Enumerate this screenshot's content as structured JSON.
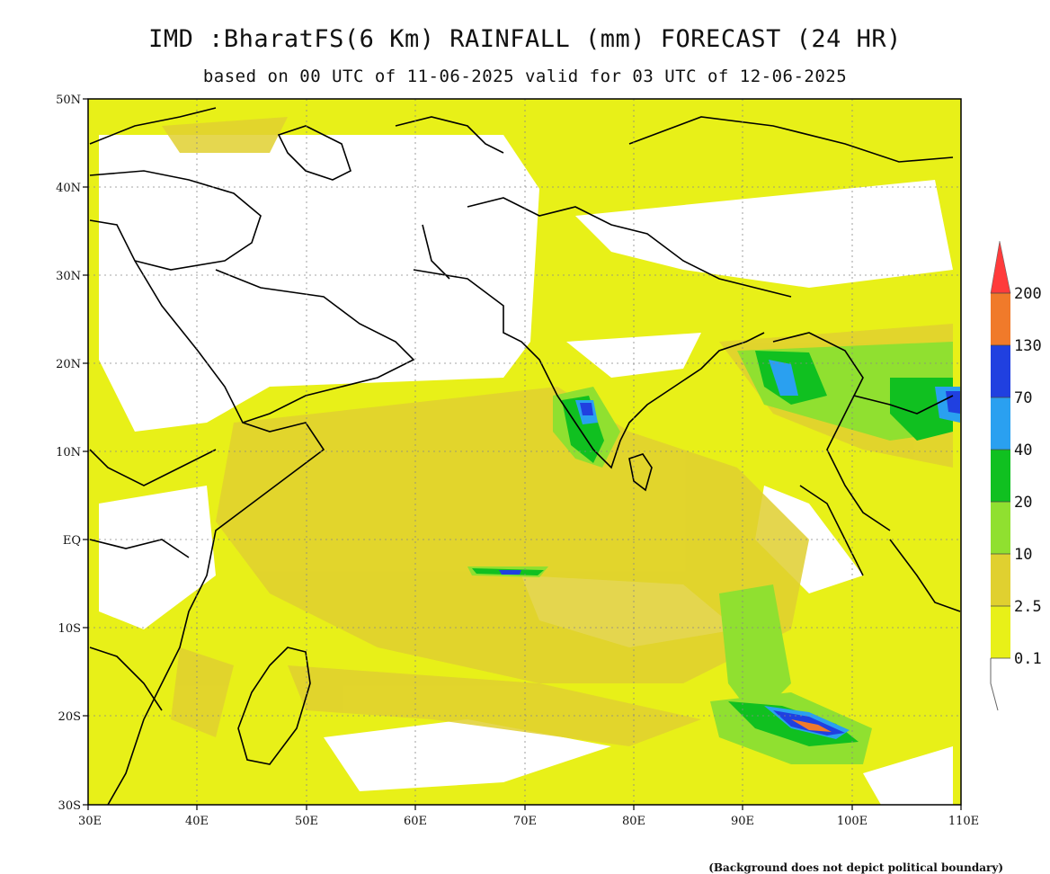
{
  "title": "IMD :BharatFS(6 Km) RAINFALL (mm) FORECAST (24 HR)",
  "subtitle": "based on 00 UTC of 11-06-2025 valid for 03 UTC of 12-06-2025",
  "footnote": "(Background does not depict political boundary)",
  "map": {
    "lon_range": [
      30,
      110
    ],
    "lat_range": [
      -30,
      50
    ],
    "lon_ticks": [
      "30E",
      "40E",
      "50E",
      "60E",
      "70E",
      "80E",
      "90E",
      "100E",
      "110E"
    ],
    "lat_ticks": [
      "50N",
      "40N",
      "30N",
      "20N",
      "10N",
      "EQ",
      "10S",
      "20S",
      "30S"
    ],
    "gridlines": true
  },
  "legend": {
    "labels": [
      "200",
      "130",
      "70",
      "40",
      "20",
      "10",
      "2.5",
      "0.1"
    ],
    "colors": {
      "above_200": "#ff3b3b",
      "130_200": "#f07a2a",
      "70_130": "#2040e0",
      "40_70": "#2aa0f0",
      "20_40": "#10c020",
      "10_20": "#90e030",
      "2_5_10": "#e0d030",
      "0_1_2_5": "#e8f018"
    }
  }
}
